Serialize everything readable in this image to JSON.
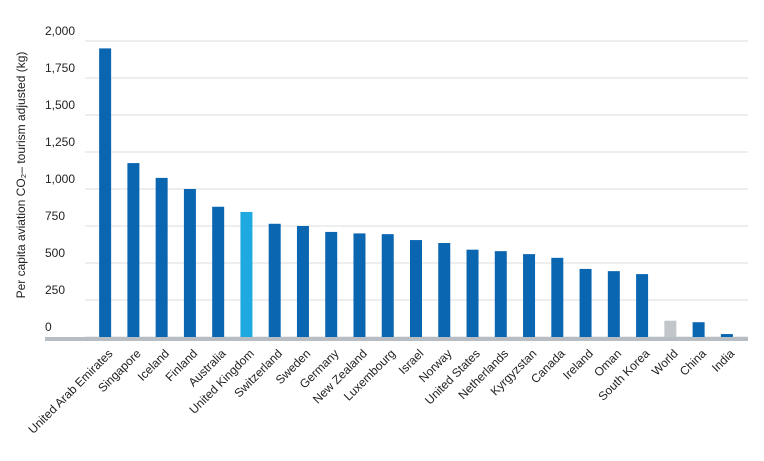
{
  "chart_data": {
    "type": "bar",
    "y_label": "Per capita aviation CO₂– tourism adjusted (kg)",
    "categories": [
      "United Arab Emirates",
      "Singapore",
      "Iceland",
      "Finland",
      "Australia",
      "United Kingdom",
      "Switzerland",
      "Sweden",
      "Germany",
      "New Zealand",
      "Luxembourg",
      "Israel",
      "Norway",
      "United States",
      "Netherlands",
      "Kyrgyzstan",
      "Canada",
      "Ireland",
      "Oman",
      "South Korea",
      "World",
      "China",
      "India"
    ],
    "values": [
      1950,
      1175,
      1075,
      1000,
      880,
      845,
      765,
      750,
      710,
      700,
      695,
      655,
      635,
      590,
      580,
      560,
      535,
      460,
      445,
      425,
      110,
      100,
      20
    ],
    "colors": [
      "#0b66b1",
      "#0b66b1",
      "#0b66b1",
      "#0b66b1",
      "#0b66b1",
      "#1ea9e1",
      "#0b66b1",
      "#0b66b1",
      "#0b66b1",
      "#0b66b1",
      "#0b66b1",
      "#0b66b1",
      "#0b66b1",
      "#0b66b1",
      "#0b66b1",
      "#0b66b1",
      "#0b66b1",
      "#0b66b1",
      "#0b66b1",
      "#0b66b1",
      "#c2c6ca",
      "#0b66b1",
      "#0b66b1"
    ],
    "ylim": [
      0,
      2000
    ],
    "yticks": [
      0,
      250,
      500,
      750,
      {
        "value": 1000,
        "label": "1,000"
      },
      {
        "value": 1250,
        "label": "1,250"
      },
      {
        "value": 1500,
        "label": "1,500"
      },
      {
        "value": 1750,
        "label": "1,750"
      },
      {
        "value": 2000,
        "label": "2,000"
      }
    ],
    "grid": true
  }
}
